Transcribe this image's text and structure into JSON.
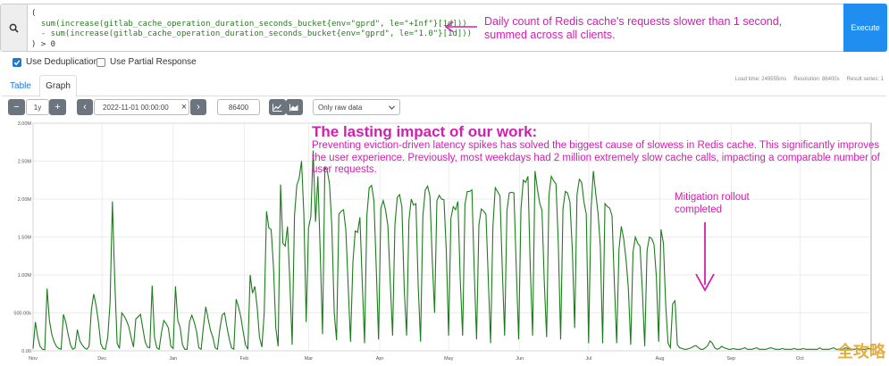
{
  "query": {
    "lines": [
      "(",
      "  sum(increase(gitlab_cache_operation_duration_seconds_bucket{env=\"gprd\", le=\"+Inf\"}[1d]))",
      "  - sum(increase(gitlab_cache_operation_duration_seconds_bucket{env=\"gprd\", le=\"1.0\"}[1d]))",
      ") > 0"
    ],
    "annotation": "Daily count of Redis cache's requests slower than 1 second, summed across all clients.",
    "execute_label": "Execute",
    "search_icon": "search-icon"
  },
  "options": {
    "dedup_label": "Use Deduplication",
    "dedup_checked": true,
    "partial_label": "Use Partial Response",
    "partial_checked": false
  },
  "stats": {
    "load_time": "Load time: 249555ms",
    "resolution": "Resolution: 86400s",
    "result_series": "Result series: 1"
  },
  "tabs": {
    "table": "Table",
    "graph": "Graph",
    "active": "graph"
  },
  "controls": {
    "minus": "−",
    "range": "1y",
    "plus": "+",
    "prev": "‹",
    "end_time": "2022-11-01 00:00:00",
    "clear": "×",
    "next": "›",
    "resolution": "86400",
    "stacked_icon": "line-chart-icon",
    "area_icon": "area-chart-icon",
    "select_value": "Only raw data",
    "select_chevron": "⌄"
  },
  "overlay": {
    "title": "The lasting impact of our work:",
    "body": "Preventing eviction-driven latency spikes has solved the biggest cause of slowess in Redis cache.  This significantly improves the user experience.  Previously, most weekdays had 2 million extremely slow cache calls, impacting a comparable number of user requests.",
    "mitigation": "Mitigation rollout completed"
  },
  "watermark": "全攻略",
  "chart_data": {
    "type": "line",
    "y_tick_labels": [
      "0.00",
      "500.00k",
      "1.00M",
      "1.50M",
      "2.00M",
      "2.50M",
      "3.00M"
    ],
    "ylim": [
      0,
      3000000
    ],
    "x_tick_labels": [
      "Nov",
      "Dec",
      "Jan",
      "Feb",
      "Mar",
      "Apr",
      "May",
      "Jun",
      "Jul",
      "Aug",
      "Sep",
      "Oct"
    ],
    "x_range_days": [
      0,
      365
    ],
    "grid": true,
    "line_color": "#1b7d1b",
    "annotation_color": "#d020b0",
    "series": [
      {
        "values": [
          30000,
          380000,
          180000,
          60000,
          20000,
          15000,
          820000,
          400000,
          220000,
          120000,
          60000,
          30000,
          20000,
          480000,
          380000,
          220000,
          80000,
          20000,
          40000,
          280000,
          130000,
          80000,
          40000,
          20000,
          60000,
          540000,
          750000,
          600000,
          380000,
          90000,
          30000,
          20000,
          180000,
          640000,
          1970000,
          940000,
          100000,
          30000,
          500000,
          460000,
          400000,
          320000,
          180000,
          50000,
          420000,
          450000,
          480000,
          300000,
          120000,
          50000,
          40000,
          860000,
          180000,
          40000,
          20000,
          240000,
          400000,
          360000,
          300000,
          60000,
          30000,
          850000,
          400000,
          310000,
          80000,
          20000,
          20000,
          380000,
          470000,
          380000,
          260000,
          40000,
          20000,
          320000,
          580000,
          420000,
          270000,
          180000,
          40000,
          20000,
          280000,
          470000,
          500000,
          320000,
          160000,
          40000,
          20000,
          680000,
          580000,
          450000,
          250000,
          80000,
          20000,
          1000000,
          760000,
          850000,
          580000,
          180000,
          50000,
          500000,
          1840000,
          1620000,
          1600000,
          1100000,
          300000,
          60000,
          2190000,
          1420000,
          1380000,
          1640000,
          900000,
          80000,
          1780000,
          2180000,
          2280000,
          2500000,
          1800000,
          380000,
          1620000,
          1770000,
          2640000,
          1700000,
          2300000,
          1300000,
          220000,
          2420000,
          2380000,
          2200000,
          1640000,
          500000,
          140000,
          1800000,
          1840000,
          1860000,
          1590000,
          850000,
          120000,
          1170000,
          1580000,
          1560000,
          1760000,
          920000,
          100000,
          1780000,
          2150000,
          2180000,
          1980000,
          1100000,
          150000,
          1880000,
          1980000,
          1860000,
          1650000,
          900000,
          200000,
          1660000,
          2020000,
          2060000,
          1900000,
          820000,
          200000,
          1720000,
          2000000,
          1920000,
          1940000,
          850000,
          120000,
          1780000,
          2120000,
          2170000,
          2040000,
          1200000,
          500000,
          1980000,
          2050000,
          2000000,
          1990000,
          1320000,
          200000,
          1750000,
          1900000,
          1860000,
          1970000,
          950000,
          200000,
          1930000,
          2100000,
          2100000,
          2120000,
          1040000,
          150000,
          1660000,
          1870000,
          1840000,
          1800000,
          950000,
          100000,
          1640000,
          2150000,
          2100000,
          2040000,
          1070000,
          200000,
          1850000,
          2080000,
          2090000,
          2080000,
          1060000,
          150000,
          1870000,
          2250000,
          2220000,
          2300000,
          1100000,
          200000,
          2370000,
          2140000,
          1950000,
          1850000,
          900000,
          180000,
          2050000,
          2300000,
          2240000,
          2200000,
          1400000,
          150000,
          1870000,
          2100000,
          2080000,
          1960000,
          1320000,
          300000,
          2060000,
          2260000,
          2220000,
          1960000,
          1800000,
          100000,
          1860000,
          2370000,
          2080000,
          1820000,
          1380000,
          100000,
          1940000,
          1900000,
          1880000,
          1780000,
          900000,
          100000,
          1340000,
          1640000,
          1480000,
          1200000,
          820000,
          80000,
          1300000,
          1500000,
          1420000,
          1380000,
          800000,
          60000,
          1320000,
          1500000,
          1480000,
          1400000,
          980000,
          120000,
          1600000,
          1420000,
          600000,
          100000,
          40000,
          620000,
          660000,
          80000,
          40000,
          30000,
          20000,
          20000,
          30000,
          40000,
          60000,
          70000,
          40000,
          20000,
          20000,
          40000,
          70000,
          130000,
          100000,
          40000,
          20000,
          30000,
          60000,
          40000,
          30000,
          20000,
          20000,
          30000,
          20000,
          20000,
          20000,
          30000,
          40000,
          20000,
          20000,
          20000,
          30000,
          40000,
          20000,
          20000,
          20000,
          20000,
          30000,
          40000,
          30000,
          20000,
          20000,
          20000,
          30000,
          20000,
          20000,
          20000,
          20000,
          30000,
          20000,
          20000,
          20000,
          30000,
          20000,
          20000,
          20000,
          20000,
          20000,
          20000,
          40000,
          20000,
          20000,
          20000,
          20000,
          30000,
          40000,
          20000,
          20000,
          20000,
          20000,
          40000,
          30000,
          20000,
          20000,
          20000,
          30000,
          20000,
          20000,
          20000,
          20000,
          30000,
          20000
        ]
      }
    ]
  }
}
